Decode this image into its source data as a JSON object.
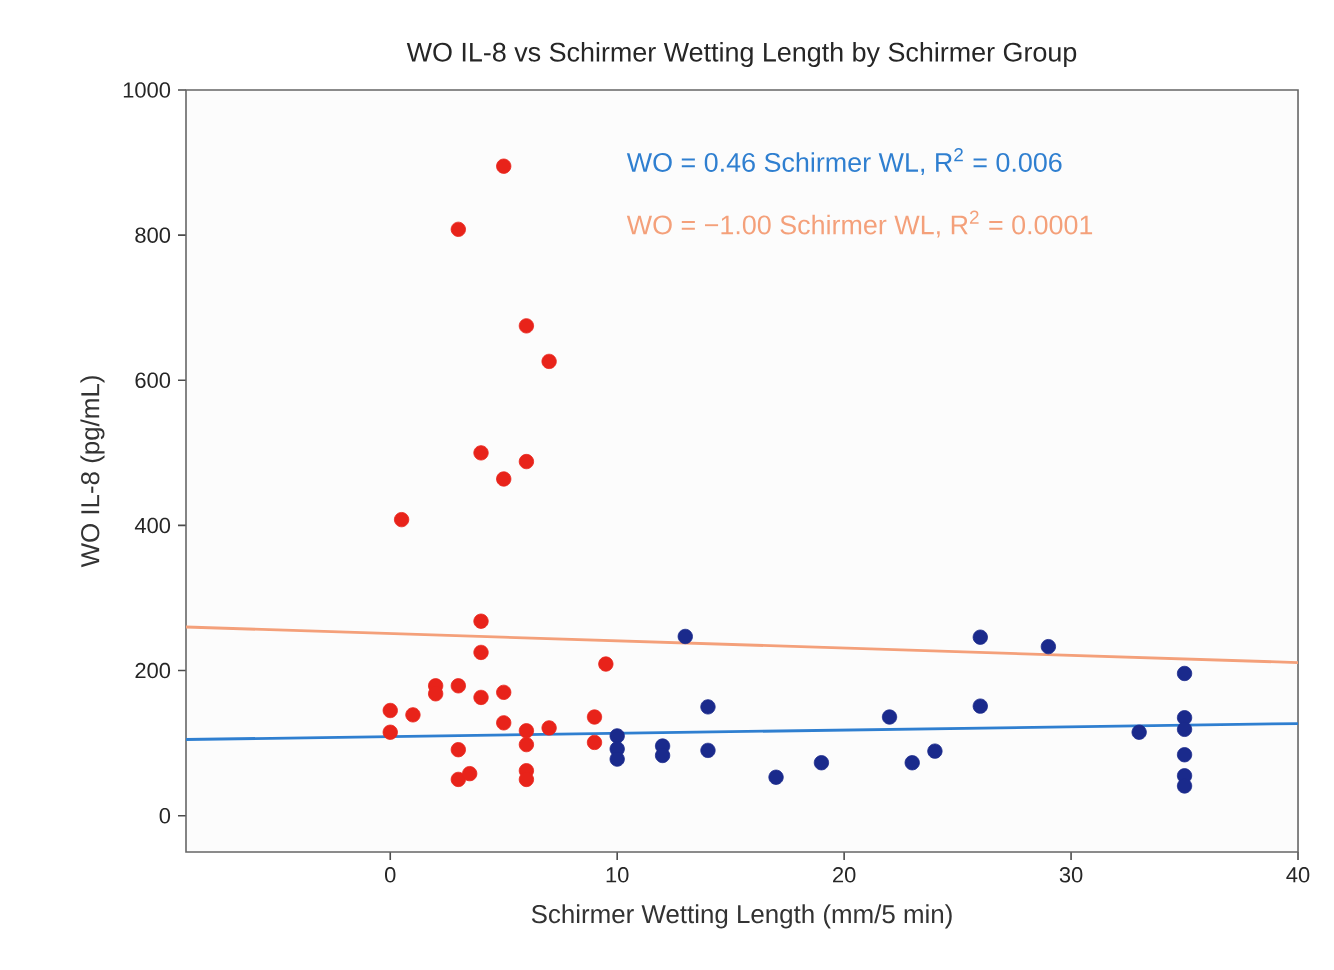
{
  "chart_data": {
    "type": "scatter",
    "title": "WO IL-8 vs Schirmer Wetting Length by Schirmer Group",
    "xlabel": "Schirmer Wetting Length (mm/5 min)",
    "ylabel": "WO IL-8 (pg/mL)",
    "xlim": [
      -9,
      40
    ],
    "ylim": [
      -50,
      1000
    ],
    "xticks": [
      0,
      10,
      20,
      30,
      40
    ],
    "yticks": [
      0,
      200,
      400,
      600,
      800,
      1000
    ],
    "grid": false,
    "series": [
      {
        "marker": "circle",
        "color": "#e8231a",
        "x": [
          5,
          3,
          6,
          7,
          4,
          6,
          5,
          0.5,
          4,
          4,
          2,
          2,
          3,
          4,
          5,
          5,
          9.5,
          0,
          0,
          1,
          3,
          3,
          3.5,
          6,
          6,
          6,
          6,
          7,
          9,
          9
        ],
        "values": [
          895,
          808,
          675,
          626,
          500,
          488,
          464,
          408,
          268,
          225,
          179,
          168,
          179,
          163,
          170,
          128,
          209,
          145,
          115,
          139,
          91,
          50,
          58,
          117,
          98,
          62,
          50,
          121,
          136,
          101
        ]
      },
      {
        "marker": "circle",
        "color": "#1a2a8c",
        "x": [
          10,
          10,
          10,
          12,
          12,
          13,
          14,
          14,
          17,
          19,
          22,
          23,
          24,
          26,
          26,
          29,
          33,
          35,
          35,
          35,
          35,
          35,
          35
        ],
        "values": [
          110,
          92,
          78,
          96,
          83,
          247,
          150,
          90,
          53,
          73,
          136,
          73,
          89,
          246,
          151,
          233,
          115,
          196,
          135,
          119,
          84,
          55,
          41
        ]
      },
      {
        "type": "line",
        "marker": "none",
        "color": "#2f7fd0",
        "x": [
          -9,
          40
        ],
        "values": [
          105,
          127
        ]
      },
      {
        "type": "line",
        "marker": "none",
        "color": "#f4a07a",
        "x": [
          -9,
          40
        ],
        "values": [
          260,
          211
        ]
      }
    ],
    "annotations": [
      "WO = 0.46 Schirmer WL, R$^{2}$ = 0.006",
      "WO = −1.00 Schirmer WL, R$^{2}$ = 0.0001"
    ]
  }
}
